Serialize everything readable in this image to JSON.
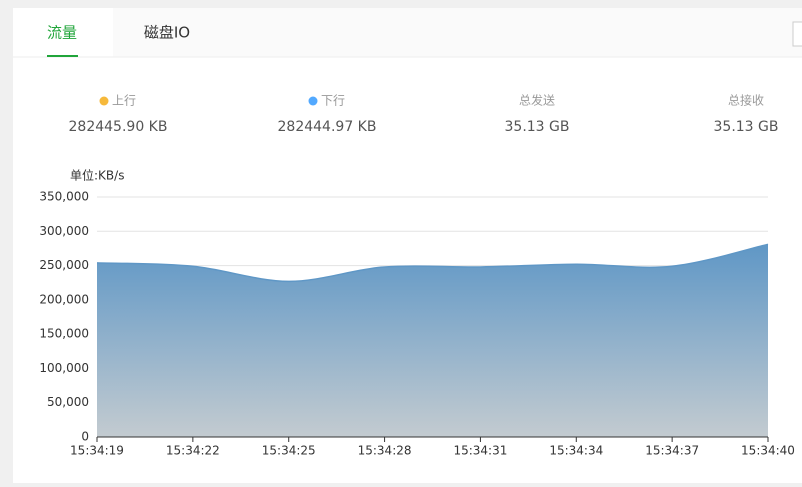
{
  "tabs": [
    "流量",
    "磁盘IO"
  ],
  "stats": [
    {
      "label": "上行",
      "value": "282445.90 KB",
      "color": "#f6b93b"
    },
    {
      "label": "下行",
      "value": "282444.97 KB",
      "color": "#52a9ff"
    },
    {
      "label": "总发送",
      "value": "35.13 GB"
    },
    {
      "label": "总接收",
      "value": "35.13 GB"
    }
  ],
  "chart_data": {
    "type": "area",
    "unit_label": "单位:KB/s",
    "categories": [
      "15:34:19",
      "15:34:22",
      "15:34:25",
      "15:34:28",
      "15:34:31",
      "15:34:34",
      "15:34:37",
      "15:34:40"
    ],
    "values": [
      254000,
      249000,
      227000,
      248000,
      248000,
      252000,
      249000,
      281000
    ],
    "color": "#5f97c6",
    "ylim": [
      0,
      350000
    ],
    "yticks": [
      0,
      {
        "value": 50000,
        "label": "50,000"
      },
      {
        "value": 100000,
        "label": "100,000"
      },
      {
        "value": 150000,
        "label": "150,000"
      },
      {
        "value": 200000,
        "label": "200,000"
      },
      {
        "value": 250000,
        "label": "250,000"
      },
      {
        "value": 300000,
        "label": "300,000"
      },
      {
        "value": 350000,
        "label": "350,000"
      }
    ],
    "grid": true
  }
}
